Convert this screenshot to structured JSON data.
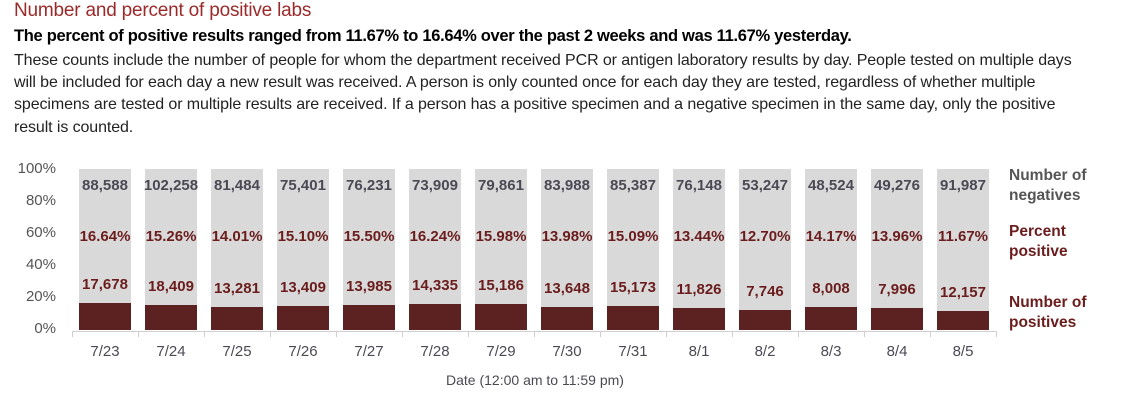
{
  "header": {
    "title": "Number and percent of positive labs",
    "subtitle": "The percent of positive results ranged from 11.67% to 16.64% over the past 2 weeks and was 11.67% yesterday.",
    "description": "These counts include the number of people for whom the department received PCR or antigen laboratory results by day. People tested on multiple days will be included for each day a new result was received. A person is only counted once for each day they are tested, regardless of whether multiple specimens are tested or multiple results are received. If a person has a positive specimen and a negative specimen in the same day, only the positive result is counted."
  },
  "legend": {
    "negatives_line1": "Number of",
    "negatives_line2": "negatives",
    "percent_line1": "Percent",
    "percent_line2": "positive",
    "positives_line1": "Number of",
    "positives_line2": "positives"
  },
  "colors": {
    "positive_bar": "#5c2121",
    "negative_bar": "#d9d9d9",
    "title": "#9b2a2a",
    "percent_label": "#6b1d1d"
  },
  "chart_data": {
    "type": "bar",
    "stacked": true,
    "normalized_percent": true,
    "title": "Number and percent of positive labs",
    "xlabel": "Date (12:00 am to 11:59 pm)",
    "ylabel": "",
    "ylim": [
      0,
      100
    ],
    "y_ticks": [
      "100%",
      "80%",
      "60%",
      "40%",
      "20%",
      "0%"
    ],
    "grid": false,
    "legend_position": "right",
    "categories": [
      "7/23",
      "7/24",
      "7/25",
      "7/26",
      "7/27",
      "7/28",
      "7/29",
      "7/30",
      "7/31",
      "8/1",
      "8/2",
      "8/3",
      "8/4",
      "8/5"
    ],
    "series": [
      {
        "name": "Number of positives",
        "values": [
          17678,
          18409,
          13281,
          13409,
          13985,
          14335,
          15186,
          13648,
          15173,
          11826,
          7746,
          8008,
          7996,
          12157
        ],
        "labels": [
          "17,678",
          "18,409",
          "13,281",
          "13,409",
          "13,985",
          "14,335",
          "15,186",
          "13,648",
          "15,173",
          "11,826",
          "7,746",
          "8,008",
          "7,996",
          "12,157"
        ]
      },
      {
        "name": "Number of negatives",
        "values": [
          88588,
          102258,
          81484,
          75401,
          76231,
          73909,
          79861,
          83988,
          85387,
          76148,
          53247,
          48524,
          49276,
          91987
        ],
        "labels": [
          "88,588",
          "102,258",
          "81,484",
          "75,401",
          "76,231",
          "73,909",
          "79,861",
          "83,988",
          "85,387",
          "76,148",
          "53,247",
          "48,524",
          "49,276",
          "91,987"
        ]
      },
      {
        "name": "Percent positive",
        "values": [
          16.64,
          15.26,
          14.01,
          15.1,
          15.5,
          16.24,
          15.98,
          13.98,
          15.09,
          13.44,
          12.7,
          14.17,
          13.96,
          11.67
        ],
        "labels": [
          "16.64%",
          "15.26%",
          "14.01%",
          "15.10%",
          "15.50%",
          "16.24%",
          "15.98%",
          "13.98%",
          "15.09%",
          "13.44%",
          "12.70%",
          "14.17%",
          "13.96%",
          "11.67%"
        ]
      }
    ]
  }
}
